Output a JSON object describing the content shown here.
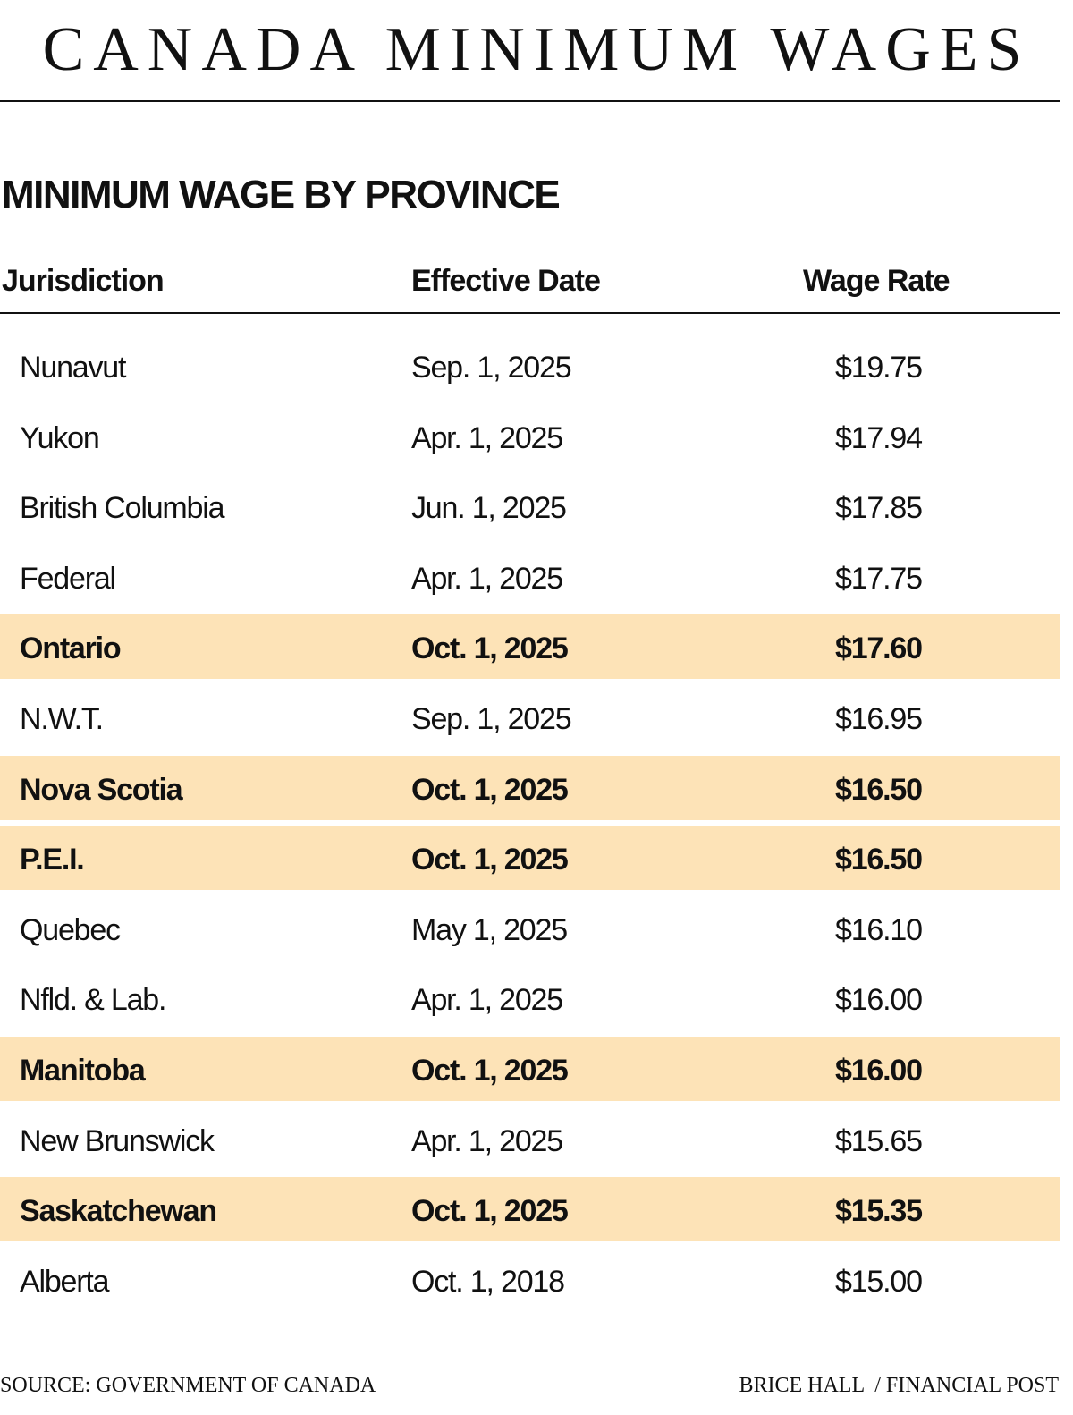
{
  "header": {
    "title": "CANADA MINIMUM WAGES"
  },
  "section": {
    "subtitle": "MINIMUM WAGE BY PROVINCE"
  },
  "table": {
    "columns": [
      "Jurisdiction",
      "Effective Date",
      "Wage Rate"
    ],
    "highlight_color": "#fde3b7",
    "rows": [
      {
        "jurisdiction": "Nunavut",
        "date": "Sep. 1, 2025",
        "wage": "$19.75",
        "highlight": false
      },
      {
        "jurisdiction": "Yukon",
        "date": "Apr. 1, 2025",
        "wage": "$17.94",
        "highlight": false
      },
      {
        "jurisdiction": "British Columbia",
        "date": "Jun. 1, 2025",
        "wage": "$17.85",
        "highlight": false
      },
      {
        "jurisdiction": "Federal",
        "date": "Apr. 1, 2025",
        "wage": "$17.75",
        "highlight": false
      },
      {
        "jurisdiction": "Ontario",
        "date": "Oct. 1, 2025",
        "wage": "$17.60",
        "highlight": true
      },
      {
        "jurisdiction": "N.W.T.",
        "date": "Sep. 1, 2025",
        "wage": "$16.95",
        "highlight": false
      },
      {
        "jurisdiction": "Nova Scotia",
        "date": "Oct. 1, 2025",
        "wage": "$16.50",
        "highlight": true
      },
      {
        "jurisdiction": "P.E.I.",
        "date": "Oct. 1, 2025",
        "wage": "$16.50",
        "highlight": true
      },
      {
        "jurisdiction": "Quebec",
        "date": "May 1, 2025",
        "wage": "$16.10",
        "highlight": false
      },
      {
        "jurisdiction": "Nfld. & Lab.",
        "date": "Apr. 1, 2025",
        "wage": "$16.00",
        "highlight": false
      },
      {
        "jurisdiction": "Manitoba",
        "date": "Oct. 1, 2025",
        "wage": "$16.00",
        "highlight": true
      },
      {
        "jurisdiction": "New Brunswick",
        "date": "Apr. 1, 2025",
        "wage": "$15.65",
        "highlight": false
      },
      {
        "jurisdiction": "Saskatchewan",
        "date": "Oct. 1, 2025",
        "wage": "$15.35",
        "highlight": true
      },
      {
        "jurisdiction": "Alberta",
        "date": "Oct. 1, 2018",
        "wage": "$15.00",
        "highlight": false
      }
    ]
  },
  "footer": {
    "source": "SOURCE: GOVERNMENT OF CANADA",
    "credit": "BRICE HALL  / FINANCIAL POST"
  },
  "chart_data": {
    "type": "table",
    "title": "CANADA MINIMUM WAGES",
    "subtitle": "MINIMUM WAGE BY PROVINCE",
    "columns": [
      "Jurisdiction",
      "Effective Date",
      "Wage Rate"
    ],
    "rows": [
      [
        "Nunavut",
        "Sep. 1, 2025",
        19.75
      ],
      [
        "Yukon",
        "Apr. 1, 2025",
        17.94
      ],
      [
        "British Columbia",
        "Jun. 1, 2025",
        17.85
      ],
      [
        "Federal",
        "Apr. 1, 2025",
        17.75
      ],
      [
        "Ontario",
        "Oct. 1, 2025",
        17.6
      ],
      [
        "N.W.T.",
        "Sep. 1, 2025",
        16.95
      ],
      [
        "Nova Scotia",
        "Oct. 1, 2025",
        16.5
      ],
      [
        "P.E.I.",
        "Oct. 1, 2025",
        16.5
      ],
      [
        "Quebec",
        "May 1, 2025",
        16.1
      ],
      [
        "Nfld. & Lab.",
        "Apr. 1, 2025",
        16.0
      ],
      [
        "Manitoba",
        "Oct. 1, 2025",
        16.0
      ],
      [
        "New Brunswick",
        "Apr. 1, 2025",
        15.65
      ],
      [
        "Saskatchewan",
        "Oct. 1, 2025",
        15.35
      ],
      [
        "Alberta",
        "Oct. 1, 2018",
        15.0
      ]
    ],
    "highlighted_rows": [
      "Ontario",
      "Nova Scotia",
      "P.E.I.",
      "Manitoba",
      "Saskatchewan"
    ],
    "source": "SOURCE: GOVERNMENT OF CANADA",
    "credit": "BRICE HALL / FINANCIAL POST"
  }
}
